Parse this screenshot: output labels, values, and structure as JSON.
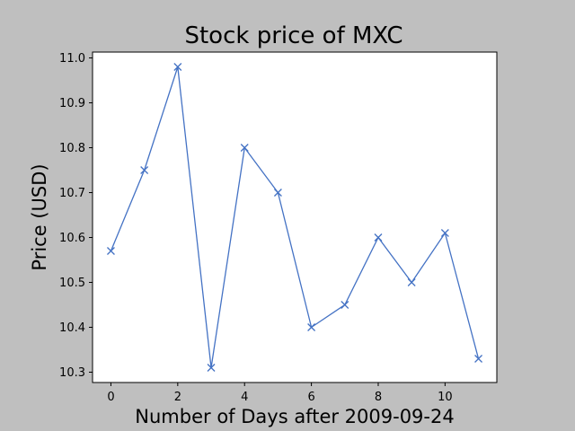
{
  "chart_data": {
    "type": "line",
    "title": "Stock price of MXC",
    "xlabel": "Number of Days after 2009-09-24",
    "ylabel": "Price (USD)",
    "x": [
      0,
      1,
      2,
      3,
      4,
      5,
      6,
      7,
      8,
      9,
      10,
      11
    ],
    "series": [
      {
        "values": [
          10.57,
          10.75,
          10.98,
          10.31,
          10.8,
          10.7,
          10.4,
          10.45,
          10.6,
          10.5,
          10.61,
          10.33
        ],
        "marker": "x",
        "color": "#4472c4"
      }
    ],
    "xlim": [
      -0.55,
      11.55
    ],
    "ylim": [
      10.277,
      11.013
    ],
    "xticks": [
      0,
      2,
      4,
      6,
      8,
      10
    ],
    "xtick_labels": [
      "0",
      "2",
      "4",
      "6",
      "8",
      "10"
    ],
    "yticks": [
      10.3,
      10.4,
      10.5,
      10.6,
      10.7,
      10.8,
      10.9,
      11.0
    ],
    "ytick_labels": [
      "10.3",
      "10.4",
      "10.5",
      "10.6",
      "10.7",
      "10.8",
      "10.9",
      "11.0"
    ],
    "grid": false,
    "legend": false
  },
  "colors": {
    "figure_background": "#bfbfbf",
    "plot_background": "#ffffff",
    "axis": "#000000"
  }
}
